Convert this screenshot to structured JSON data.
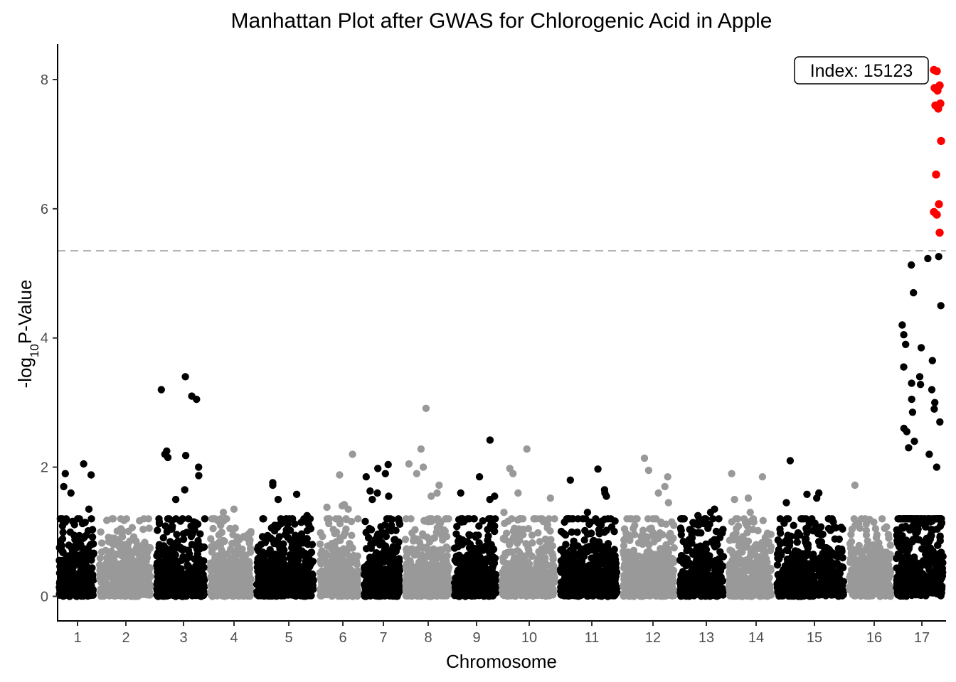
{
  "chart_data": {
    "type": "scatter",
    "title": "Manhattan Plot after GWAS for Chlorogenic Acid in Apple",
    "xlabel": "Chromosome",
    "ylabel": {
      "prefix": "-log",
      "subscript": "10",
      "suffix": "P-Value"
    },
    "ylim": [
      -0.38,
      8.55
    ],
    "yticks": [
      0,
      2,
      4,
      6,
      8
    ],
    "threshold": 5.35,
    "grid": false,
    "legend": "none",
    "colors": {
      "odd_chromosome": "#000000",
      "even_chromosome": "#999999",
      "significant": "#ff0000",
      "threshold_line": "#b3b3b3"
    },
    "annotation": {
      "text": "Index: 15123",
      "chromosome": "17",
      "y": 8.15
    },
    "chromosomes": [
      {
        "label": "1",
        "peaks": [
          2.05,
          1.9,
          1.88,
          1.7,
          1.6,
          1.35
        ]
      },
      {
        "label": "2",
        "peaks": [
          0.92,
          0.9,
          0.85,
          0.8,
          0.75
        ]
      },
      {
        "label": "3",
        "peaks": [
          3.4,
          3.2,
          3.1,
          3.05,
          2.25,
          2.2,
          2.18,
          2.15,
          2.0,
          1.87,
          1.65,
          1.5
        ]
      },
      {
        "label": "4",
        "peaks": [
          1.35,
          1.3,
          1.18,
          1.1,
          1.05,
          0.95
        ]
      },
      {
        "label": "5",
        "peaks": [
          1.76,
          1.72,
          1.58,
          1.5,
          1.25,
          1.2,
          1.1
        ]
      },
      {
        "label": "6",
        "peaks": [
          2.2,
          1.88,
          1.42,
          1.4,
          1.38,
          1.35
        ]
      },
      {
        "label": "7",
        "peaks": [
          2.04,
          1.98,
          1.9,
          1.85,
          1.63,
          1.6,
          1.55,
          1.5
        ]
      },
      {
        "label": "8",
        "peaks": [
          2.91,
          2.28,
          2.05,
          2.0,
          1.9,
          1.72,
          1.6,
          1.55
        ]
      },
      {
        "label": "9",
        "peaks": [
          2.42,
          1.85,
          1.6,
          1.55,
          1.5
        ]
      },
      {
        "label": "10",
        "peaks": [
          2.28,
          1.98,
          1.9,
          1.6,
          1.52,
          1.3,
          1.2
        ]
      },
      {
        "label": "11",
        "peaks": [
          1.97,
          1.8,
          1.65,
          1.6,
          1.55,
          1.3,
          0.95
        ]
      },
      {
        "label": "12",
        "peaks": [
          2.14,
          1.95,
          1.85,
          1.7,
          1.6,
          1.45,
          1.15
        ]
      },
      {
        "label": "13",
        "peaks": [
          1.35,
          1.3,
          1.25,
          1.1,
          0.85
        ]
      },
      {
        "label": "14",
        "peaks": [
          1.9,
          1.85,
          1.52,
          1.5,
          1.3,
          1.05
        ]
      },
      {
        "label": "15",
        "peaks": [
          2.1,
          1.6,
          1.58,
          1.52,
          1.45,
          1.05
        ]
      },
      {
        "label": "16",
        "peaks": [
          1.72,
          1.02,
          0.95
        ]
      },
      {
        "label": "17",
        "peaks": [
          5.26,
          5.23,
          5.13,
          4.7,
          4.5,
          4.2,
          4.05,
          3.9,
          3.85,
          3.65,
          3.55,
          3.4,
          3.3,
          3.28,
          3.2,
          3.05,
          3.0,
          2.9,
          2.85,
          2.7,
          2.6,
          2.55,
          2.4,
          2.3,
          2.2,
          2.0
        ],
        "significant": [
          8.15,
          8.13,
          7.91,
          7.87,
          7.83,
          7.63,
          7.6,
          7.55,
          7.05,
          6.53,
          6.07,
          5.95,
          5.91,
          5.63
        ]
      }
    ]
  }
}
